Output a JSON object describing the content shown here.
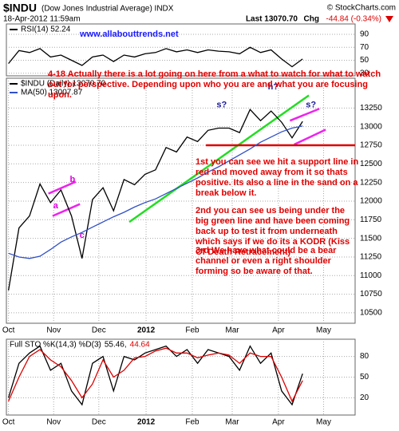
{
  "header": {
    "symbol": "$INDU",
    "name": "(Dow Jones Industrial Average) INDX",
    "copyright": "© StockCharts.com",
    "date": "18-Apr-2012 11:59am",
    "last": "Last 13070.70",
    "chg": "Chg",
    "change": "-44.84 (-0.34%)"
  },
  "chart_data": [
    {
      "type": "line",
      "annotation": "www.allabouttrends.net",
      "x": [
        0,
        1,
        2,
        3,
        4,
        5,
        6,
        7,
        8,
        9,
        10,
        11,
        12,
        13,
        14,
        15,
        16,
        17,
        18,
        19,
        20,
        21,
        22,
        23,
        24,
        25,
        26,
        27,
        28
      ],
      "series": [
        {
          "name": "RSI(14) 52.24",
          "color": "#000000",
          "values": [
            45,
            65,
            62,
            68,
            55,
            58,
            50,
            42,
            55,
            58,
            48,
            58,
            55,
            60,
            62,
            68,
            63,
            66,
            62,
            66,
            64,
            63,
            60,
            70,
            62,
            66,
            52,
            40,
            52
          ]
        }
      ],
      "xlim": [
        -0.2,
        33
      ],
      "ylim": [
        26,
        106
      ],
      "yticks": [
        30,
        50,
        70,
        90
      ],
      "grid": true
    },
    {
      "type": "line",
      "x": [
        0,
        1,
        2,
        3,
        4,
        5,
        6,
        7,
        8,
        9,
        10,
        11,
        12,
        13,
        14,
        15,
        16,
        17,
        18,
        19,
        20,
        21,
        22,
        23,
        24,
        25,
        26,
        27,
        28
      ],
      "series": [
        {
          "name": "$INDU (Daily) 13070.70",
          "color": "#000000",
          "values": [
            10800,
            11640,
            11800,
            12230,
            11980,
            12150,
            11800,
            11230,
            12020,
            12180,
            11870,
            12290,
            12220,
            12360,
            12420,
            12720,
            12660,
            12860,
            12800,
            12950,
            12980,
            12980,
            12920,
            13230,
            13080,
            13210,
            13060,
            12850,
            13070
          ]
        },
        {
          "name": "MA(50) 13007.87",
          "color": "#3050c8",
          "values": [
            11300,
            11250,
            11230,
            11260,
            11350,
            11450,
            11520,
            11580,
            11650,
            11720,
            11790,
            11850,
            11920,
            11980,
            12030,
            12100,
            12170,
            12240,
            12310,
            12390,
            12460,
            12540,
            12620,
            12700,
            12790,
            12860,
            12930,
            12980,
            13008
          ]
        }
      ],
      "xlim": [
        -0.2,
        33
      ],
      "ylim": [
        10360,
        13650
      ],
      "yticks": [
        10500,
        10750,
        11000,
        11250,
        11500,
        11750,
        12000,
        12250,
        12500,
        12750,
        13000,
        13250
      ],
      "xticks": [
        {
          "value": 0,
          "label": "Oct"
        },
        {
          "value": 4.3,
          "label": "Nov"
        },
        {
          "value": 8.6,
          "label": "Dec"
        },
        {
          "value": 13.1,
          "label": "2012"
        },
        {
          "value": 17.5,
          "label": "Feb"
        },
        {
          "value": 21.3,
          "label": "Mar"
        },
        {
          "value": 25.7,
          "label": "Apr"
        },
        {
          "value": 30,
          "label": "May"
        }
      ],
      "grid": true,
      "lines": [
        {
          "color": "#22dd22",
          "x": [
            11.5,
            28.6
          ],
          "y": [
            11720,
            13420
          ]
        },
        {
          "color": "#ee22ee",
          "x": [
            3.8,
            6.4
          ],
          "y": [
            12100,
            12260
          ]
        },
        {
          "color": "#ee22ee",
          "x": [
            4.2,
            6.8
          ],
          "y": [
            11800,
            11960
          ]
        },
        {
          "color": "#ee22ee",
          "x": [
            26.8,
            29.6
          ],
          "y": [
            13080,
            13240
          ]
        },
        {
          "color": "#ee22ee",
          "x": [
            27.2,
            30.2
          ],
          "y": [
            12760,
            12960
          ]
        },
        {
          "color": "#dd0000",
          "x": [
            18.8,
            33
          ],
          "y": [
            12750,
            12750
          ]
        }
      ],
      "labels": [
        {
          "text": "a",
          "color": "#dd00dd",
          "x": 4.5,
          "y": 11935
        },
        {
          "text": "b",
          "color": "#dd00dd",
          "x": 6.1,
          "y": 12290
        },
        {
          "text": "c",
          "color": "#dd00dd",
          "x": 7.0,
          "y": 11540
        },
        {
          "text": "s?",
          "color": "#1a1a99",
          "x": 20.3,
          "y": 13290
        },
        {
          "text": "h?",
          "color": "#1a1a99",
          "x": 25.2,
          "y": 13530
        },
        {
          "text": "s?",
          "color": "#1a1a99",
          "x": 28.8,
          "y": 13290
        }
      ],
      "notes": [
        "4-18 Actually there is a lot going on here from a what to watch for what to watch out for perspective. Depending upon who you are and what you are focusing upon.",
        "1st you can see we hit a support line in red and moved away from it so thats positive. Its also a line in the sand on a break below it.",
        "2nd you can see us being under the big green line and have been coming back up to test it from underneath which says if we do its a KODR (Kiss Of Death Retracement)",
        "3rd We have what could be a bear channel or even a right shoulder forming so be aware of that."
      ]
    },
    {
      "type": "line",
      "title": "Full STO %K(14,3) %D(3)",
      "x": [
        0,
        1,
        2,
        3,
        4,
        5,
        6,
        7,
        8,
        9,
        10,
        11,
        12,
        13,
        14,
        15,
        16,
        17,
        18,
        19,
        20,
        21,
        22,
        23,
        24,
        25,
        26,
        27,
        28
      ],
      "series": [
        {
          "name": "55.46,",
          "color": "#000000",
          "values": [
            20,
            70,
            85,
            95,
            60,
            70,
            30,
            10,
            70,
            80,
            30,
            80,
            75,
            85,
            90,
            95,
            80,
            90,
            70,
            90,
            85,
            80,
            60,
            95,
            70,
            85,
            30,
            10,
            55
          ]
        },
        {
          "name": "44.64",
          "color": "#dd0000",
          "values": [
            15,
            50,
            80,
            90,
            75,
            65,
            45,
            20,
            40,
            75,
            50,
            60,
            78,
            80,
            88,
            92,
            85,
            85,
            78,
            82,
            85,
            82,
            70,
            85,
            80,
            80,
            50,
            15,
            45
          ]
        }
      ],
      "xlim": [
        -0.2,
        33
      ],
      "ylim": [
        -5,
        105
      ],
      "yticks": [
        20,
        50,
        80
      ],
      "xticks": [
        {
          "value": 0,
          "label": "Oct"
        },
        {
          "value": 4.3,
          "label": "Nov"
        },
        {
          "value": 8.6,
          "label": "Dec"
        },
        {
          "value": 13.1,
          "label": "2012"
        },
        {
          "value": 17.5,
          "label": "Feb"
        },
        {
          "value": 21.3,
          "label": "Mar"
        },
        {
          "value": 25.7,
          "label": "Apr"
        },
        {
          "value": 30,
          "label": "May"
        }
      ],
      "grid": true
    }
  ]
}
